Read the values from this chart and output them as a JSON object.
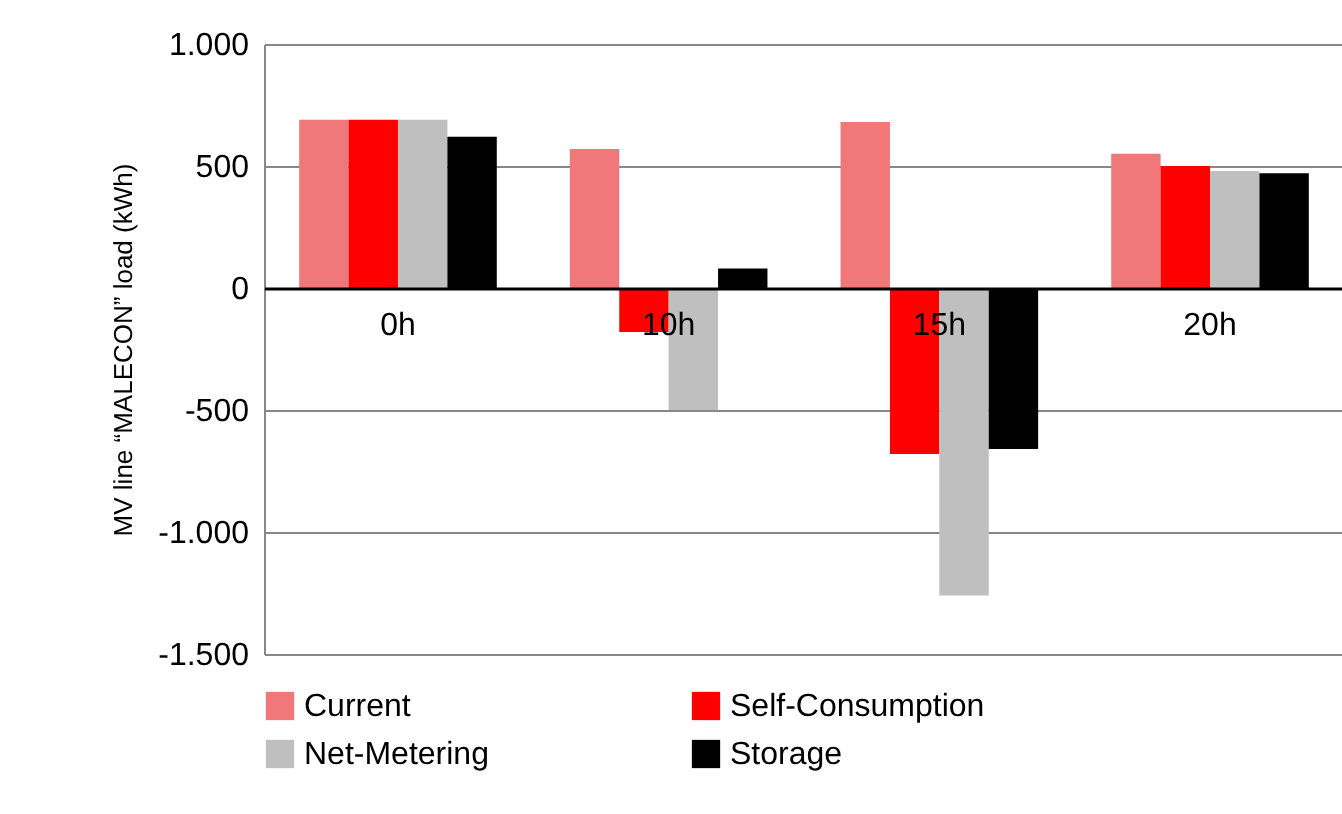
{
  "chart_data": {
    "type": "bar",
    "ylabel": "MV line “MALECON” load (kWh)",
    "categories": [
      "0h",
      "10h",
      "15h",
      "20h"
    ],
    "series": [
      {
        "name": "Current",
        "color": "#f07878",
        "values": [
          690,
          570,
          680,
          550
        ]
      },
      {
        "name": "Self-Consumption",
        "color": "#ff0000",
        "values": [
          690,
          -180,
          -680,
          500
        ]
      },
      {
        "name": "Net-Metering",
        "color": "#bfbfbf",
        "values": [
          690,
          -500,
          -1260,
          480
        ]
      },
      {
        "name": "Storage",
        "color": "#000000",
        "values": [
          620,
          80,
          -660,
          470
        ]
      }
    ],
    "ylim": [
      -1500,
      1000
    ],
    "yticks": [
      {
        "value": -1500,
        "label": "-1.500"
      },
      {
        "value": -1000,
        "label": "-1.000"
      },
      {
        "value": -500,
        "label": "-500"
      },
      0,
      500,
      {
        "value": 1000,
        "label": "1.000"
      }
    ],
    "grid": "y",
    "legend": "bottom"
  }
}
